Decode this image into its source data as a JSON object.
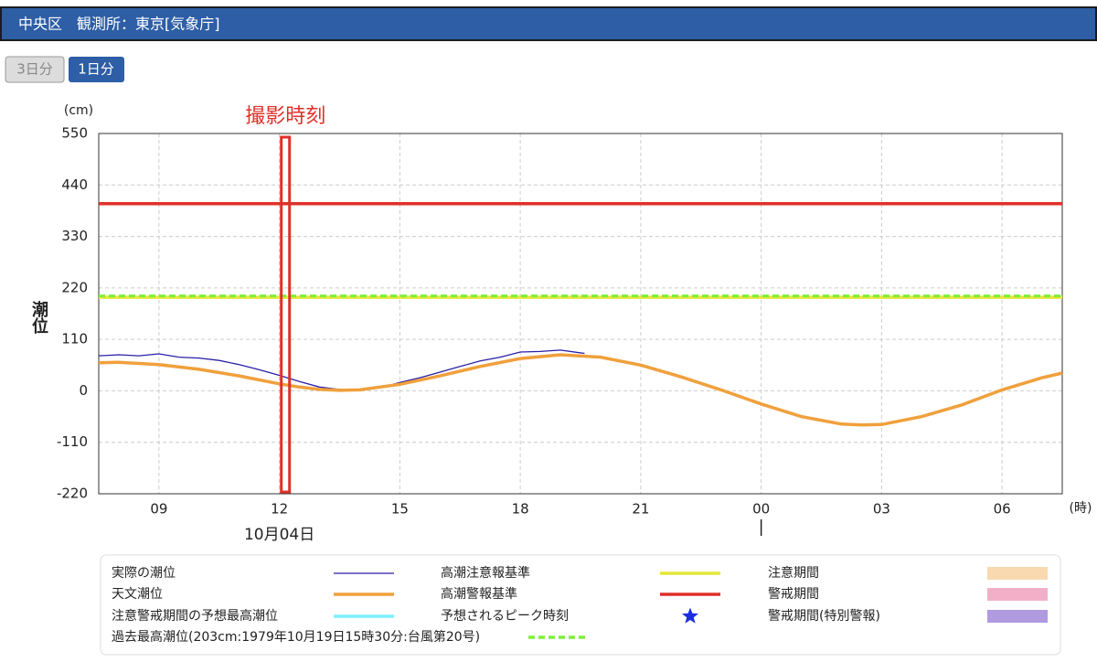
{
  "header": {
    "title": "中央区　観測所：東京[気象庁]"
  },
  "buttons": [
    "3日分",
    "1日分"
  ],
  "chart_data": {
    "type": "line",
    "y_label": "潮位",
    "y_unit": "(cm)",
    "x_unit": "(時)",
    "date_label": "10月04日",
    "annotation": {
      "text": "撮影時刻",
      "x": 12.15,
      "color": "#e0302a"
    },
    "xlim": [
      7.5,
      31.5
    ],
    "xticks": [
      {
        "value": 9,
        "label": "09"
      },
      12,
      15,
      18,
      21,
      {
        "value": 24,
        "label": "00"
      },
      {
        "value": 27,
        "label": "03"
      },
      {
        "value": 30,
        "label": "06"
      }
    ],
    "ylim": [
      -220,
      550
    ],
    "yticks": [
      550,
      440,
      330,
      220,
      110,
      0,
      -110,
      -220
    ],
    "grid": true,
    "series": [
      {
        "name": "実際の潮位",
        "color": "#2a1fa8",
        "style": "line",
        "x": [
          7.5,
          8,
          8.5,
          9,
          9.5,
          10,
          10.5,
          11,
          11.5,
          12,
          12.5,
          13,
          13.5,
          14,
          14.5,
          15,
          15.5,
          16,
          16.5,
          17,
          17.5,
          18,
          18.5,
          19,
          19.6
        ],
        "values": [
          75,
          77,
          75,
          79,
          72,
          70,
          65,
          56,
          45,
          33,
          20,
          8,
          3,
          3,
          6,
          18,
          28,
          40,
          52,
          64,
          72,
          83,
          84,
          87,
          80
        ]
      },
      {
        "name": "高潮注意報基準",
        "color": "#e6e63a",
        "style": "line",
        "x": [
          7.5,
          31.5
        ],
        "values": [
          200,
          200
        ]
      },
      {
        "name": "注意期間",
        "color": "#f8d9b0",
        "style": "box"
      },
      {
        "name": "天文潮位",
        "color": "#f0a03c",
        "style": "line",
        "x": [
          7.5,
          8,
          9,
          10,
          11,
          12,
          12.5,
          13,
          13.5,
          14,
          15,
          16,
          17,
          18,
          19,
          20,
          21,
          22,
          23,
          24,
          25,
          26,
          26.5,
          27,
          28,
          29,
          30,
          31,
          31.5
        ],
        "values": [
          60,
          61,
          56,
          46,
          32,
          15,
          8,
          3,
          1,
          2,
          14,
          32,
          52,
          69,
          77,
          72,
          55,
          30,
          2,
          -28,
          -55,
          -71,
          -73,
          -72,
          -55,
          -30,
          2,
          28,
          38
        ]
      },
      {
        "name": "高潮警報基準",
        "color": "#e0302a",
        "style": "line",
        "x": [
          7.5,
          31.5
        ],
        "values": [
          400,
          400
        ]
      },
      {
        "name": "警戒期間",
        "color": "#f2b0c8",
        "style": "box"
      },
      {
        "name": "注意警戒期間の予想最高潮位",
        "color": "#7fefff",
        "style": "line"
      },
      {
        "name": "予想されるピーク時刻",
        "color": "#1a2ee0",
        "style": "star"
      },
      {
        "name": "警戒期間(特別警報)",
        "color": "#b09ae0",
        "style": "box"
      },
      {
        "name": "過去最高潮位(203cm:1979年10月19日15時30分:台風第20号)",
        "color": "#7cf03a",
        "style": "dash",
        "x": [
          7.5,
          31.5
        ],
        "values": [
          203,
          203
        ]
      }
    ]
  }
}
